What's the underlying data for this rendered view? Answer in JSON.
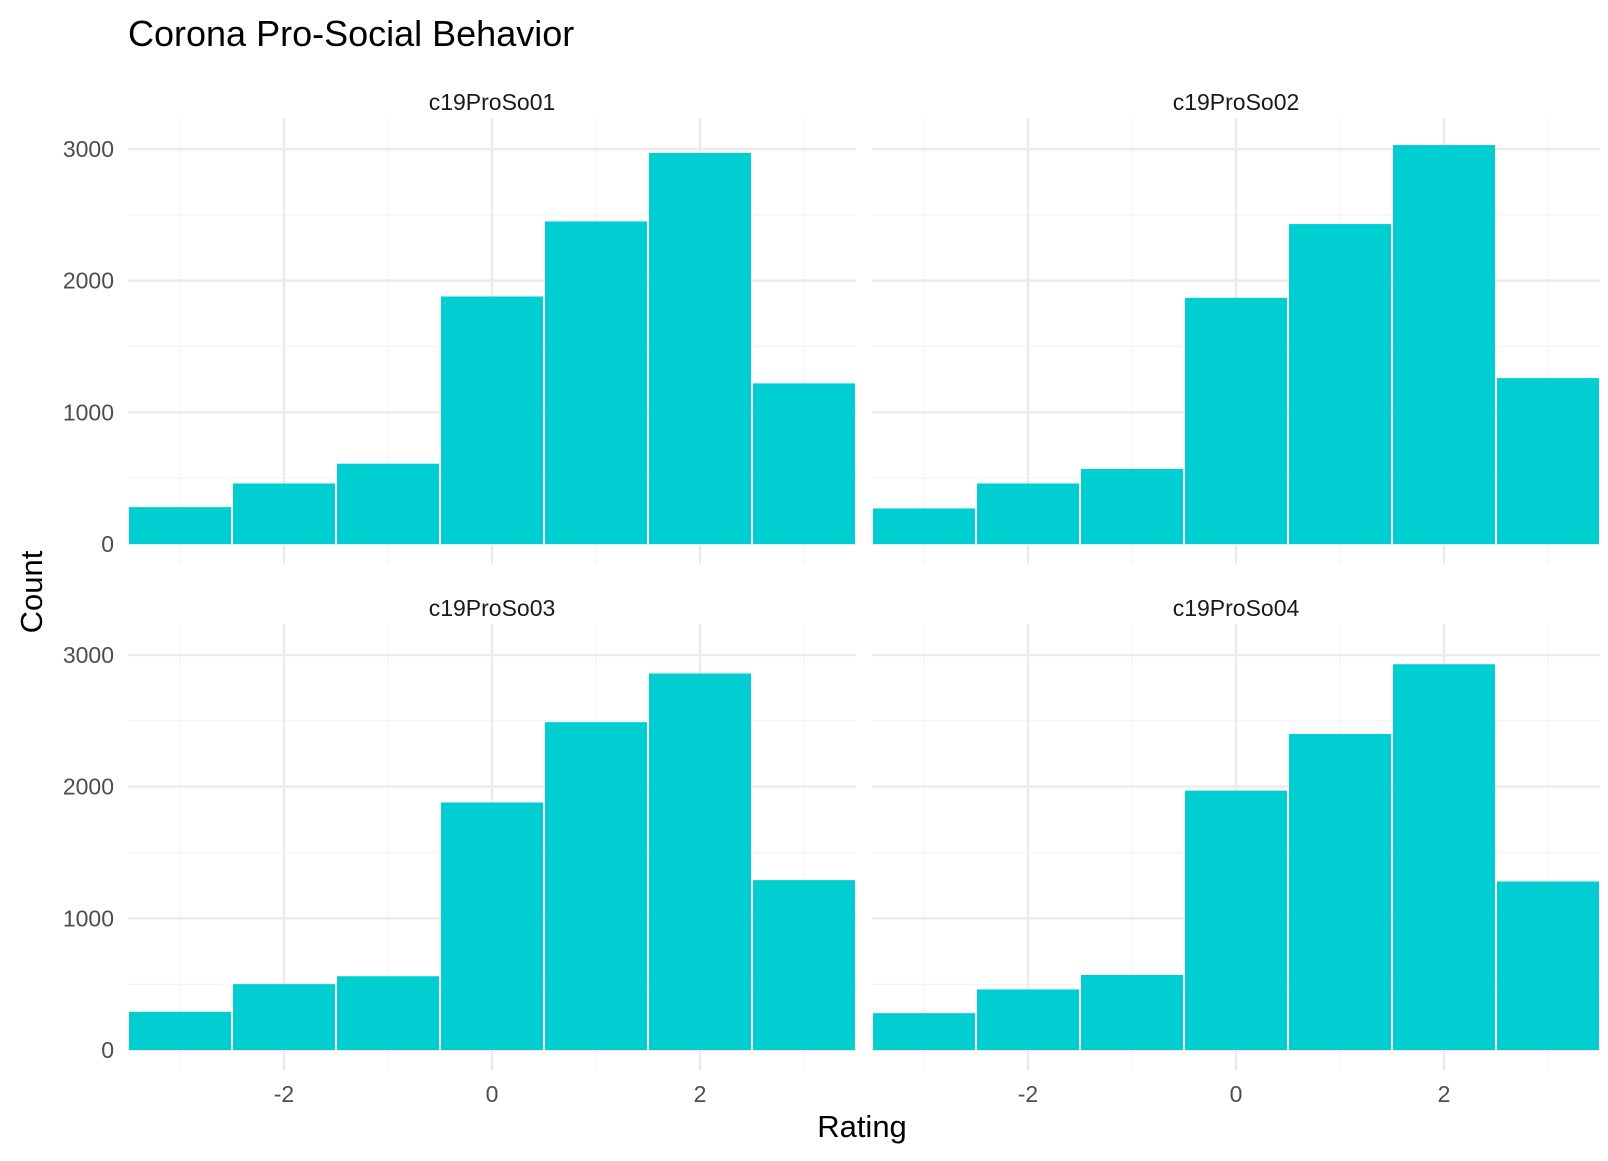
{
  "chart_data": {
    "type": "bar",
    "subtype": "histogram",
    "title": "Corona Pro-Social Behavior",
    "xlabel": "Rating",
    "ylabel": "Count",
    "bar_color": "#00CED1",
    "grid_color": "#EBEBEB",
    "bins": [
      -3,
      -2,
      -1,
      0,
      1,
      2,
      3
    ],
    "bin_width": 1,
    "xlim": [
      -3.5,
      3.5
    ],
    "ylim": [
      0,
      3000
    ],
    "x_ticks": [
      -2,
      0,
      2
    ],
    "x_tick_labels": [
      "-2",
      "0",
      "2"
    ],
    "y_ticks": [
      0,
      1000,
      2000,
      3000
    ],
    "y_tick_labels": [
      "0",
      "1000",
      "2000",
      "3000"
    ],
    "grid": true,
    "facets": [
      {
        "name": "c19ProSo01",
        "values": [
          280,
          460,
          610,
          1880,
          2450,
          2970,
          1220
        ]
      },
      {
        "name": "c19ProSo02",
        "values": [
          270,
          460,
          570,
          1870,
          2430,
          3030,
          1260
        ]
      },
      {
        "name": "c19ProSo03",
        "values": [
          290,
          500,
          560,
          1880,
          2490,
          2860,
          1290
        ]
      },
      {
        "name": "c19ProSo04",
        "values": [
          280,
          460,
          570,
          1970,
          2400,
          2930,
          1280
        ]
      }
    ]
  }
}
